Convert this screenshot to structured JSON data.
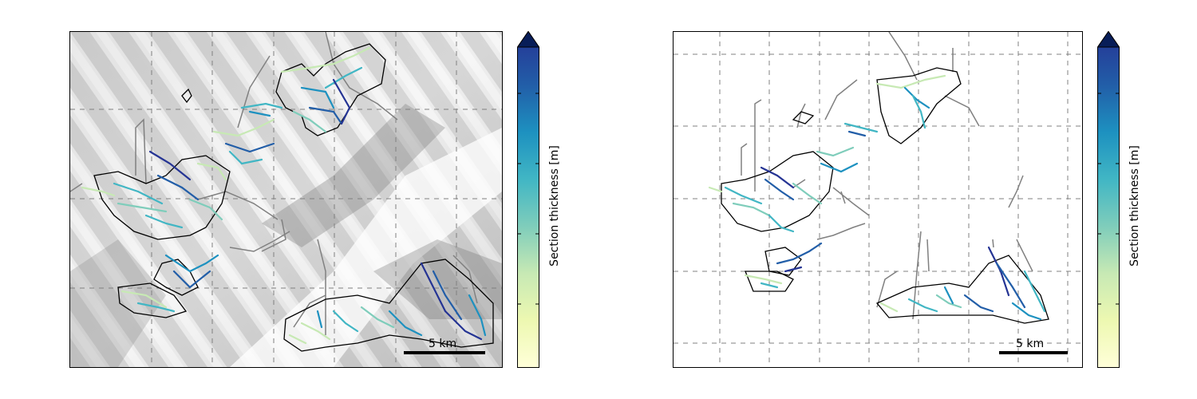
{
  "figure": {
    "panels": [
      {
        "id": "left",
        "background": "shaded-relief",
        "scalebar_label": "5 km"
      },
      {
        "id": "right",
        "background": "white",
        "scalebar_label": "5 km"
      }
    ],
    "colorbar": {
      "label": "Section thickness [m]",
      "colormap": "YlGnBu",
      "stops": [
        "#ffffd9",
        "#c7e9b4",
        "#7fcdbb",
        "#41b6c4",
        "#1d91c0",
        "#225ea8",
        "#253494",
        "#081d58"
      ],
      "extend": "max"
    },
    "colors": {
      "glacier_outline": "#000000",
      "flowline": "#808080",
      "grid": "#808080"
    }
  }
}
